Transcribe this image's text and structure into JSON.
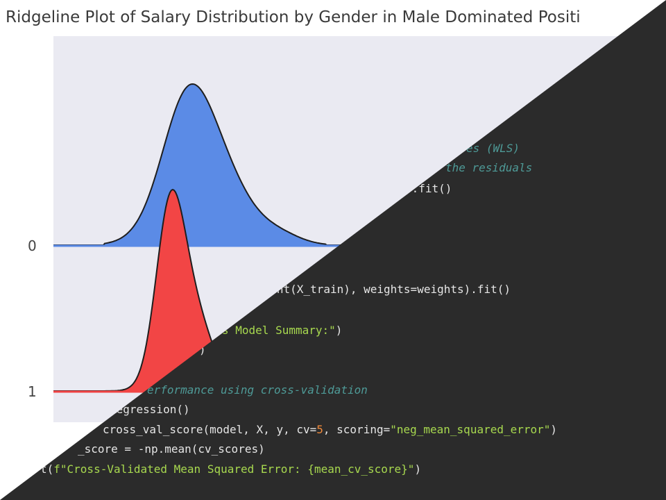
{
  "chart_data": {
    "type": "area",
    "title": "Ridgeline Plot of Salary Distribution by Gender in Male Dominated Positi",
    "y_tick_labels": [
      "0",
      "1"
    ],
    "series": [
      {
        "name": "0",
        "color": "#5b8be6"
      },
      {
        "name": "1",
        "color": "#f24545"
      }
    ],
    "grid": false
  },
  "code": {
    "line1": {
      "comment": "es (WLS)"
    },
    "line2": {
      "comment": "the residuals"
    },
    "line3": {
      "text": ").fit()"
    },
    "line4": {
      "text": "stant(X_train), weights=weights).fit()"
    },
    "line5": {
      "str": "s Model Summary:\"",
      "rest": ")"
    },
    "line6": {
      "text": ")"
    },
    "line7": {
      "comment": "erformance using cross-validation"
    },
    "line8": {
      "text": "Regression()"
    },
    "line9": {
      "pre": "cross_val_score(model, X, y, cv=",
      "num": "5",
      "mid": ", scoring=",
      "str": "\"neg_mean_squared_error\"",
      "post": ")"
    },
    "line10": {
      "text": "_score = -np.mean(cv_scores)"
    },
    "line11": {
      "pre": "t(",
      "str": "f\"Cross-Validated Mean Squared Error: {mean_cv_score}\"",
      "post": ")"
    }
  }
}
